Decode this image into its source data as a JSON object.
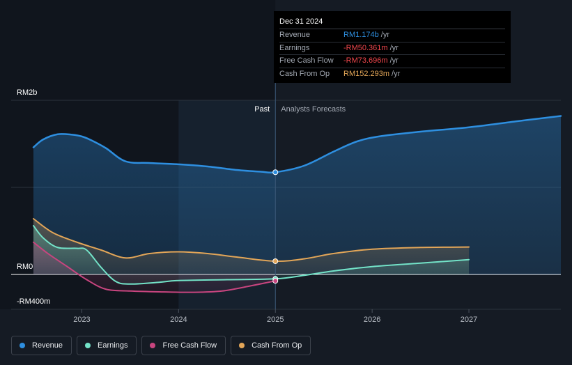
{
  "colors": {
    "background": "#151b24",
    "revenue": "#2e8fe0",
    "earnings": "#73e3c8",
    "free_cash_flow": "#c8457f",
    "cash_from_op": "#e3a658",
    "negative": "#f2474d",
    "axis_text": "#ffffff",
    "muted_text": "#a3a9b3"
  },
  "tooltip": {
    "date": "Dec 31 2024",
    "rows": [
      {
        "label": "Revenue",
        "value": "RM1.174b",
        "unit": "/yr",
        "color": "#2e8fe0"
      },
      {
        "label": "Earnings",
        "value": "-RM50.361m",
        "unit": "/yr",
        "color": "#f2474d"
      },
      {
        "label": "Free Cash Flow",
        "value": "-RM73.696m",
        "unit": "/yr",
        "color": "#f2474d"
      },
      {
        "label": "Cash From Op",
        "value": "RM152.293m",
        "unit": "/yr",
        "color": "#e3a658"
      }
    ]
  },
  "legend": [
    {
      "label": "Revenue",
      "color": "#2e8fe0"
    },
    {
      "label": "Earnings",
      "color": "#73e3c8"
    },
    {
      "label": "Free Cash Flow",
      "color": "#c8457f"
    },
    {
      "label": "Cash From Op",
      "color": "#e3a658"
    }
  ],
  "chart_data": {
    "type": "line",
    "title": "",
    "unit": "RM millions",
    "y_tick_labels": [
      {
        "value": 2000,
        "label": "RM2b"
      },
      {
        "value": 0,
        "label": "RM0"
      },
      {
        "value": -400,
        "label": "-RM400m"
      }
    ],
    "ylim": [
      -400,
      2000
    ],
    "xlim": [
      2022.5,
      2027.95
    ],
    "x_ticks": [
      {
        "value": 2023,
        "label": "2023"
      },
      {
        "value": 2024,
        "label": "2024"
      },
      {
        "value": 2025,
        "label": "2025"
      },
      {
        "value": 2026,
        "label": "2026"
      },
      {
        "value": 2027,
        "label": "2027"
      }
    ],
    "divider": {
      "x": 2025,
      "past_label": "Past",
      "forecast_label": "Analysts Forecasts"
    },
    "highlight_range": [
      2024,
      2025
    ],
    "marker_x": 2025,
    "series": [
      {
        "name": "Revenue",
        "key": "revenue",
        "color": "#2e8fe0",
        "fill": true,
        "points": [
          [
            2022.5,
            1460
          ],
          [
            2022.6,
            1550
          ],
          [
            2022.75,
            1610
          ],
          [
            2022.9,
            1605
          ],
          [
            2023.0,
            1585
          ],
          [
            2023.1,
            1540
          ],
          [
            2023.25,
            1450
          ],
          [
            2023.45,
            1300
          ],
          [
            2023.7,
            1280
          ],
          [
            2024.0,
            1265
          ],
          [
            2024.3,
            1240
          ],
          [
            2024.6,
            1200
          ],
          [
            2024.85,
            1180
          ],
          [
            2025.0,
            1174
          ],
          [
            2025.3,
            1250
          ],
          [
            2025.6,
            1410
          ],
          [
            2025.85,
            1530
          ],
          [
            2026.1,
            1590
          ],
          [
            2026.5,
            1640
          ],
          [
            2027.0,
            1690
          ],
          [
            2027.5,
            1760
          ],
          [
            2027.95,
            1820
          ]
        ]
      },
      {
        "name": "Earnings",
        "key": "earnings",
        "color": "#73e3c8",
        "fill": true,
        "points": [
          [
            2022.5,
            560
          ],
          [
            2022.6,
            420
          ],
          [
            2022.75,
            310
          ],
          [
            2022.95,
            300
          ],
          [
            2023.05,
            280
          ],
          [
            2023.2,
            80
          ],
          [
            2023.35,
            -80
          ],
          [
            2023.5,
            -110
          ],
          [
            2023.8,
            -90
          ],
          [
            2024.0,
            -70
          ],
          [
            2024.5,
            -60
          ],
          [
            2025.0,
            -50.361
          ],
          [
            2025.3,
            -10
          ],
          [
            2025.6,
            40
          ],
          [
            2026.0,
            90
          ],
          [
            2026.5,
            130
          ],
          [
            2027.0,
            170
          ]
        ]
      },
      {
        "name": "Free Cash Flow",
        "key": "free_cash_flow",
        "color": "#c8457f",
        "fill": true,
        "points": [
          [
            2022.5,
            370
          ],
          [
            2022.65,
            240
          ],
          [
            2022.85,
            90
          ],
          [
            2023.05,
            -60
          ],
          [
            2023.25,
            -170
          ],
          [
            2023.5,
            -190
          ],
          [
            2023.8,
            -200
          ],
          [
            2024.15,
            -205
          ],
          [
            2024.45,
            -190
          ],
          [
            2024.75,
            -130
          ],
          [
            2025.0,
            -73.696
          ]
        ]
      },
      {
        "name": "Cash From Op",
        "key": "cash_from_op",
        "color": "#e3a658",
        "fill": true,
        "points": [
          [
            2022.5,
            640
          ],
          [
            2022.7,
            480
          ],
          [
            2022.95,
            370
          ],
          [
            2023.2,
            280
          ],
          [
            2023.45,
            190
          ],
          [
            2023.7,
            240
          ],
          [
            2024.0,
            260
          ],
          [
            2024.3,
            240
          ],
          [
            2024.6,
            200
          ],
          [
            2025.0,
            152.293
          ],
          [
            2025.3,
            180
          ],
          [
            2025.6,
            240
          ],
          [
            2026.0,
            290
          ],
          [
            2026.5,
            310
          ],
          [
            2027.0,
            315
          ]
        ]
      }
    ]
  }
}
